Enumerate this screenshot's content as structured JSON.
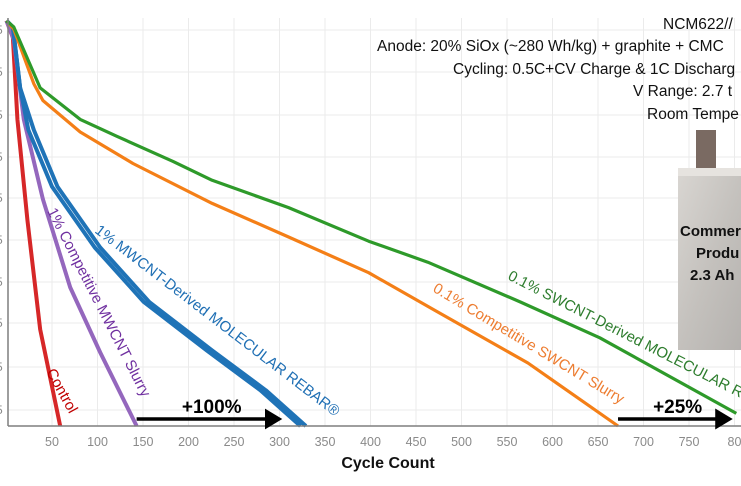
{
  "chart_data": {
    "type": "line",
    "title": "",
    "xlabel": "Cycle Count",
    "ylabel": "",
    "xlim": [
      0,
      810
    ],
    "ylim": [
      80,
      100
    ],
    "grid": true,
    "x_tick_labels": [
      "50",
      "100",
      "150",
      "200",
      "250",
      "300",
      "350",
      "400",
      "450",
      "500",
      "550",
      "600",
      "650",
      "700",
      "750",
      "80"
    ],
    "y_tick_labels_visible": [
      "5",
      "5",
      "5",
      "5",
      "5",
      "5",
      "5",
      "5",
      "5",
      "5"
    ],
    "series": [
      {
        "name": "0.1% SWCNT-Derived MOLECULAR R",
        "color": "#2e9a2a",
        "x": [
          0,
          8,
          37,
          81,
          121,
          183,
          226,
          310,
          398,
          463,
          565,
          652,
          802
        ],
        "y": [
          99.3,
          99.0,
          96.1,
          94.6,
          93.8,
          92.6,
          91.7,
          90.4,
          88.8,
          87.8,
          85.9,
          84.2,
          80.6
        ]
      },
      {
        "name": "0.1% Competitive SWCNT Slurry",
        "color": "#f47f17",
        "x": [
          0,
          8,
          30,
          40,
          81,
          139,
          226,
          310,
          398,
          471,
          573,
          672
        ],
        "y": [
          99.3,
          98.9,
          96.3,
          95.5,
          94.0,
          92.5,
          90.6,
          89.0,
          87.3,
          85.5,
          83.0,
          80.0
        ]
      },
      {
        "name": "1% MWCNT-Derived MOLECULAR REBAR®",
        "color": "#1f73b7",
        "x": [
          0,
          7,
          15,
          30,
          56,
          103,
          157,
          226,
          285,
          329
        ],
        "y": [
          99.3,
          99.0,
          96.1,
          94.1,
          91.4,
          88.5,
          85.9,
          83.6,
          81.7,
          80.0
        ]
      },
      {
        "name": "1% Competitive MWCNT Slurry",
        "color": "#9467bd",
        "x": [
          0,
          8,
          19,
          40,
          70,
          103,
          143
        ],
        "y": [
          99.3,
          98.4,
          94.6,
          90.8,
          86.6,
          83.5,
          80.0
        ]
      },
      {
        "name": "Control",
        "color": "#d62728",
        "x": [
          0,
          7,
          12,
          23,
          37,
          59
        ],
        "y": [
          99.3,
          98.5,
          94.6,
          89.8,
          84.6,
          80.0
        ]
      }
    ],
    "annotations": [
      {
        "text": "+100%",
        "from": 143,
        "to": 308
      },
      {
        "text": "+25%",
        "from": 672,
        "to": 803
      }
    ]
  },
  "info_lines": [
    "NCM622//",
    "Anode: 20% SiOx  (~280 Wh/kg) + graphite + CMC",
    "Cycling: 0.5C+CV Charge & 1C Discharg",
    "V Range: 2.7 t",
    "Room Tempe"
  ],
  "cell_photo": {
    "lines": [
      "Commer",
      "Produ",
      "2.3 Ah"
    ]
  }
}
